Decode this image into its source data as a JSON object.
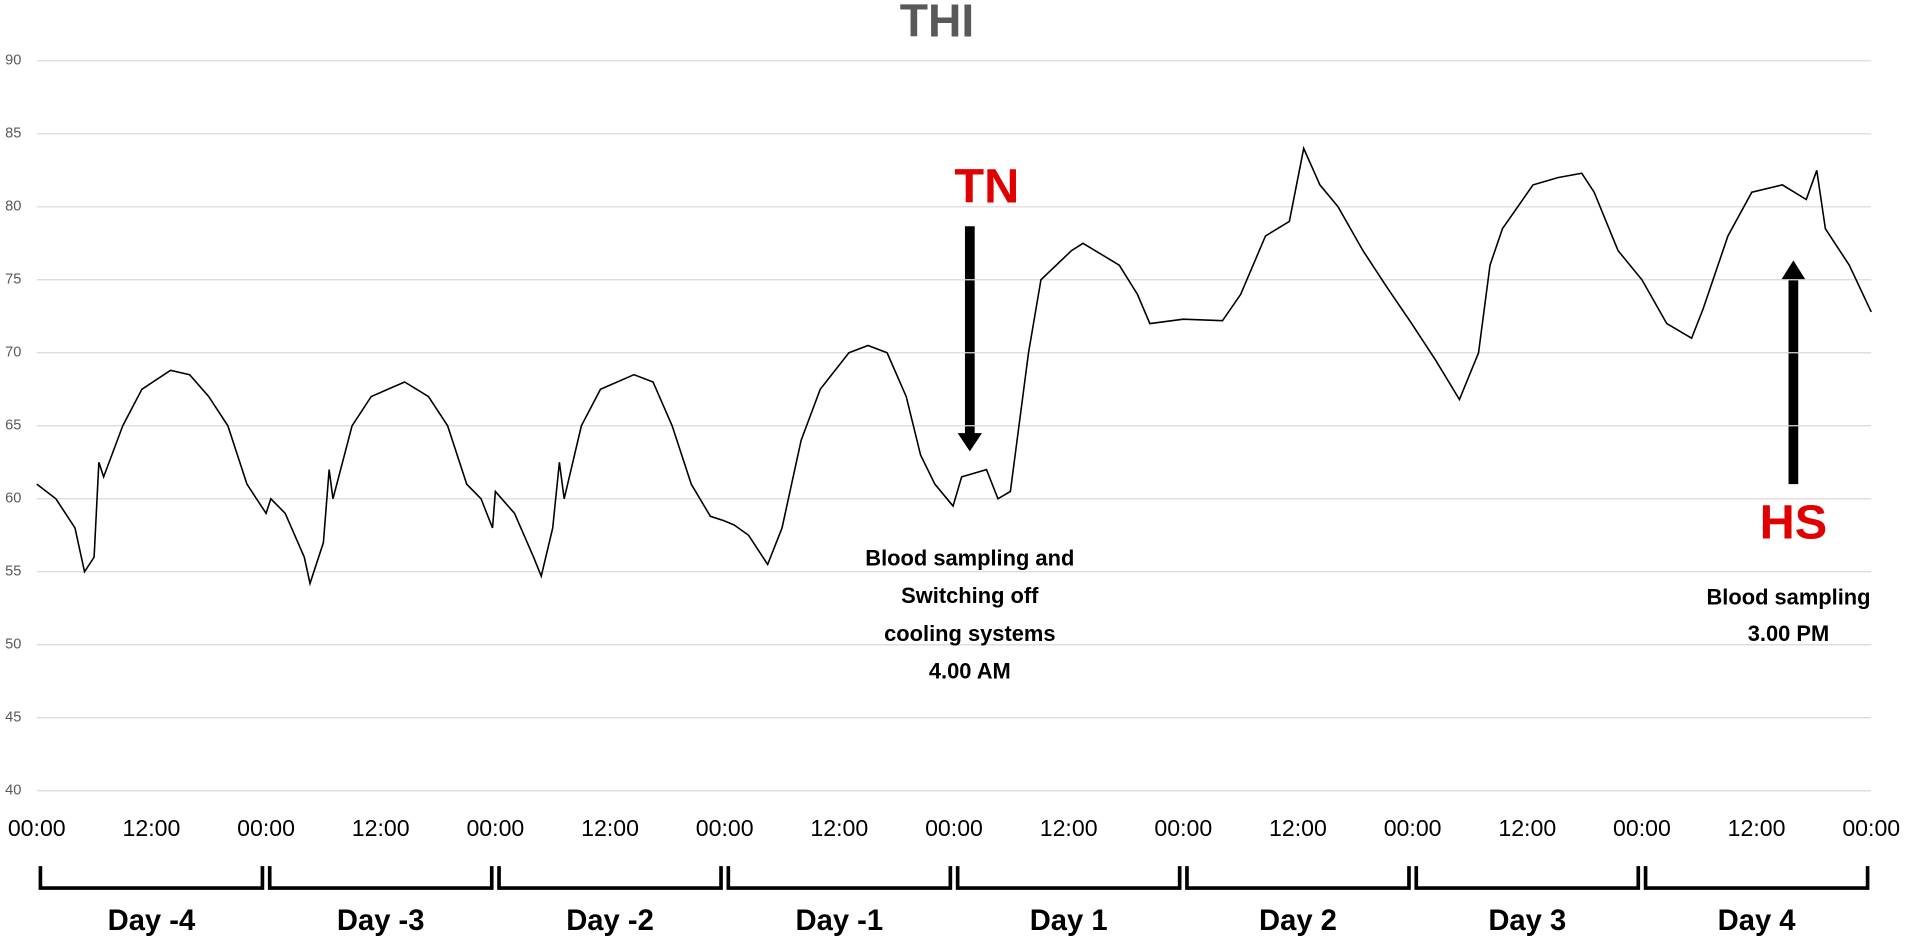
{
  "chart_data": {
    "type": "line",
    "title": "THI",
    "color": "#000000",
    "grid": true,
    "xlim": [
      0,
      192
    ],
    "ylim": [
      40,
      90
    ],
    "yticks": [
      40,
      45,
      50,
      55,
      60,
      65,
      70,
      75,
      80,
      85,
      90
    ],
    "xticks": [
      {
        "value": 0,
        "label": "00:00"
      },
      {
        "value": 12,
        "label": "12:00"
      },
      {
        "value": 24,
        "label": "00:00"
      },
      {
        "value": 36,
        "label": "12:00"
      },
      {
        "value": 48,
        "label": "00:00"
      },
      {
        "value": 60,
        "label": "12:00"
      },
      {
        "value": 72,
        "label": "00:00"
      },
      {
        "value": 84,
        "label": "12:00"
      },
      {
        "value": 96,
        "label": "00:00"
      },
      {
        "value": 108,
        "label": "12:00"
      },
      {
        "value": 120,
        "label": "00:00"
      },
      {
        "value": 132,
        "label": "12:00"
      },
      {
        "value": 144,
        "label": "00:00"
      },
      {
        "value": 156,
        "label": "12:00"
      },
      {
        "value": 168,
        "label": "00:00"
      },
      {
        "value": 180,
        "label": "12:00"
      },
      {
        "value": 192,
        "label": "00:00"
      }
    ],
    "day_labels": [
      "Day -4",
      "Day -3",
      "Day -2",
      "Day -1",
      "Day 1",
      "Day 2",
      "Day 3",
      "Day 4"
    ],
    "x": [
      0,
      2,
      4,
      5,
      6,
      6.5,
      7,
      9,
      11,
      14,
      16,
      18,
      20,
      22,
      23,
      24,
      24.5,
      26,
      28,
      28.6,
      30,
      30.6,
      31,
      33,
      35,
      38.5,
      41,
      43,
      45,
      46.5,
      47.7,
      48,
      50,
      52,
      52.8,
      54,
      54.7,
      55.2,
      57,
      59,
      62.5,
      64.5,
      66.5,
      68.5,
      70.5,
      71.9,
      73,
      74.5,
      76.5,
      78,
      80,
      82,
      85,
      87,
      89,
      91,
      92.5,
      94,
      95.9,
      96.8,
      99.4,
      100.6,
      101.9,
      103.8,
      105.1,
      108.3,
      109.5,
      113.3,
      115.2,
      116.5,
      120,
      124.1,
      126,
      128.6,
      131.1,
      132.6,
      134.3,
      136.2,
      138.8,
      141.3,
      143.9,
      146.4,
      148.9,
      150.9,
      152.1,
      153.4,
      156.6,
      159.2,
      161.7,
      163,
      165.5,
      168,
      170.6,
      173.2,
      174.4,
      177,
      179.5,
      182.7,
      185.2,
      186.3,
      187.2,
      189.7,
      192
    ],
    "values": [
      61,
      60,
      58,
      55,
      56,
      62.5,
      61.5,
      65,
      67.5,
      68.8,
      68.5,
      67,
      65,
      61,
      60,
      59,
      60,
      59,
      56,
      54.2,
      57,
      62,
      60,
      65,
      67,
      68,
      67,
      65,
      61,
      60,
      58,
      60.5,
      59,
      56,
      54.7,
      58,
      62.5,
      60,
      65,
      67.5,
      68.5,
      68,
      65,
      61,
      58.8,
      58.5,
      58.2,
      57.5,
      55.5,
      58,
      64,
      67.5,
      70,
      70.5,
      70,
      67,
      63,
      61,
      59.5,
      61.5,
      62,
      60,
      60.5,
      70,
      75,
      77,
      77.5,
      76,
      74,
      72,
      72.3,
      72.2,
      74,
      78,
      79,
      84,
      81.5,
      80,
      77,
      74.5,
      72,
      69.5,
      66.8,
      70,
      76,
      78.5,
      81.5,
      82,
      82.3,
      81,
      77,
      75,
      72,
      71,
      73,
      78,
      81,
      81.5,
      80.5,
      82.5,
      78.5,
      76,
      72.8
    ],
    "annotations": [
      {
        "label": "TN",
        "note": [
          "Blood sampling and",
          "Switching off",
          "cooling systems",
          "4.00 AM"
        ]
      },
      {
        "label": "HS",
        "note": [
          "Blood sampling",
          "3.00 PM"
        ]
      }
    ]
  }
}
